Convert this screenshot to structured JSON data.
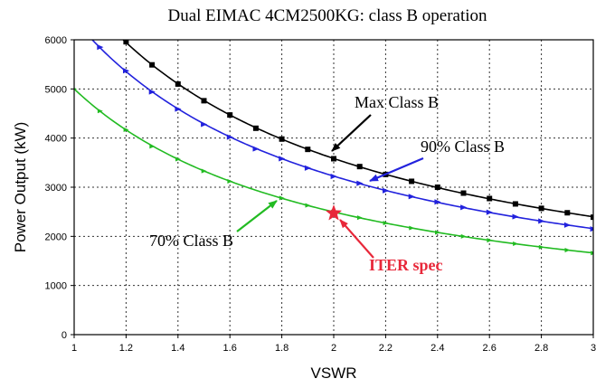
{
  "chart_data": {
    "type": "line",
    "title": "Dual EIMAC 4CM2500KG: class B operation",
    "xlabel": "VSWR",
    "ylabel": "Power Output (kW)",
    "xlim": [
      1,
      3
    ],
    "ylim": [
      0,
      6000
    ],
    "xticks": [
      "1",
      "1.2",
      "1.4",
      "1.6",
      "1.8",
      "2",
      "2.2",
      "2.4",
      "2.6",
      "2.8",
      "3"
    ],
    "yticks": [
      "0",
      "1000",
      "2000",
      "3000",
      "4000",
      "5000",
      "6000"
    ],
    "grid": true,
    "series": [
      {
        "name": "Max Class B",
        "color": "#000000",
        "marker": "square",
        "x": [
          1.2,
          1.3,
          1.4,
          1.5,
          1.6,
          1.7,
          1.8,
          1.9,
          2.0,
          2.1,
          2.2,
          2.3,
          2.4,
          2.5,
          2.6,
          2.7,
          2.8,
          2.9,
          3.0
        ],
        "y": [
          5960,
          5490,
          5100,
          4760,
          4470,
          4200,
          3980,
          3770,
          3580,
          3420,
          3260,
          3120,
          3000,
          2880,
          2770,
          2660,
          2570,
          2480,
          2390
        ]
      },
      {
        "name": "90% Class B",
        "color": "#2222dd",
        "marker": "triangle",
        "x": [
          1.1,
          1.2,
          1.3,
          1.4,
          1.5,
          1.6,
          1.7,
          1.8,
          1.9,
          2.0,
          2.1,
          2.2,
          2.3,
          2.4,
          2.5,
          2.6,
          2.7,
          2.8,
          2.9,
          3.0
        ],
        "y": [
          5850,
          5370,
          4940,
          4590,
          4280,
          4020,
          3780,
          3580,
          3390,
          3220,
          3080,
          2930,
          2810,
          2700,
          2590,
          2490,
          2400,
          2310,
          2230,
          2150
        ]
      },
      {
        "name": "70% Class B",
        "color": "#22bb22",
        "marker": "triangle",
        "x": [
          1.0,
          1.1,
          1.2,
          1.3,
          1.4,
          1.5,
          1.6,
          1.8,
          1.9,
          2.0,
          2.1,
          2.2,
          2.3,
          2.4,
          2.5,
          2.6,
          2.7,
          2.8,
          2.9,
          3.0
        ],
        "y": [
          5000,
          4550,
          4170,
          3830,
          3570,
          3330,
          3120,
          2780,
          2630,
          2500,
          2380,
          2270,
          2170,
          2080,
          2000,
          1920,
          1850,
          1780,
          1720,
          1660
        ]
      }
    ],
    "annotations": [
      {
        "text": "Max Class B",
        "color": "#000000",
        "arrow_to": [
          1.99,
          3600
        ]
      },
      {
        "text": "90% Class B",
        "color": "#2222dd",
        "arrow_to": [
          2.14,
          3030
        ]
      },
      {
        "text": "70% Class B",
        "color": "#22bb22",
        "arrow_to": [
          1.79,
          2760
        ]
      },
      {
        "text": "ITER spec",
        "color": "#e8283a",
        "arrow_to": [
          2.02,
          2490
        ]
      }
    ],
    "highlight_point": {
      "label": "ITER spec",
      "x": 2.0,
      "y": 2470,
      "color": "#e8283a",
      "marker": "star"
    },
    "legend": "none"
  }
}
